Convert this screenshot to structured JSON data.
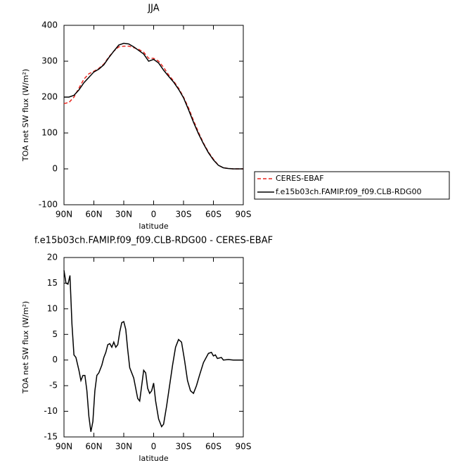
{
  "chart_data": [
    {
      "type": "line",
      "title": "JJA",
      "x_label": "latitude",
      "y_label": "TOA net SW flux (W/m²)",
      "x": [
        90,
        85,
        80,
        75,
        70,
        65,
        60,
        55,
        50,
        45,
        40,
        35,
        30,
        25,
        20,
        15,
        10,
        5,
        0,
        -5,
        -10,
        -15,
        -20,
        -25,
        -30,
        -35,
        -40,
        -45,
        -50,
        -55,
        -60,
        -65,
        -70,
        -75,
        -80,
        -85,
        -90
      ],
      "series": [
        {
          "name": "CERES-EBAF",
          "color": "#e8261f",
          "line_style": "dashed",
          "values": [
            182,
            185,
            200,
            225,
            250,
            265,
            272,
            280,
            292,
            312,
            328,
            340,
            342,
            342,
            338,
            333,
            325,
            308,
            308,
            300,
            283,
            262,
            245,
            225,
            200,
            170,
            135,
            102,
            72,
            47,
            27,
            10,
            3,
            1,
            0,
            0,
            0
          ]
        },
        {
          "name": "f.e15b03ch.FAMIP.f09_f09.CLB-RDG00",
          "color": "#000000",
          "line_style": "solid",
          "values": [
            200,
            200,
            205,
            220,
            240,
            255,
            270,
            278,
            290,
            310,
            328,
            345,
            350,
            348,
            340,
            330,
            320,
            300,
            305,
            295,
            275,
            258,
            242,
            222,
            198,
            165,
            130,
            98,
            70,
            45,
            25,
            10,
            3,
            1,
            0,
            0,
            0
          ]
        }
      ],
      "xlim": [
        90,
        -90
      ],
      "xticks": [
        {
          "value": 90,
          "label": "90N"
        },
        {
          "value": 60,
          "label": "60N"
        },
        {
          "value": 30,
          "label": "30N"
        },
        0,
        {
          "value": -30,
          "label": "30S"
        },
        {
          "value": -60,
          "label": "60S"
        },
        {
          "value": -90,
          "label": "90S"
        }
      ],
      "ylim": [
        -100,
        400
      ],
      "yticks": [
        -100,
        0,
        100,
        200,
        300,
        400
      ],
      "yticks_labels_override": null,
      "legend": true
    },
    {
      "type": "line",
      "title": "f.e15b03ch.FAMIP.f09_f09.CLB-RDG00 - CERES-EBAF",
      "x_label": "latitude",
      "y_label": "TOA net SW flux (W/m²)",
      "x": [
        90,
        88,
        86,
        84,
        82,
        80,
        78,
        75,
        73,
        71,
        69,
        67,
        65,
        63,
        61,
        59,
        57,
        55,
        52,
        50,
        48,
        46,
        44,
        42,
        40,
        38,
        36,
        34,
        32,
        30,
        28,
        26,
        24,
        22,
        20,
        18,
        16,
        14,
        12,
        10,
        8,
        6,
        4,
        2,
        0,
        -2,
        -5,
        -8,
        -10,
        -13,
        -16,
        -19,
        -22,
        -25,
        -28,
        -31,
        -34,
        -37,
        -40,
        -43,
        -46,
        -50,
        -55,
        -58,
        -60,
        -62,
        -64,
        -68,
        -70,
        -75,
        -80,
        -90
      ],
      "series": [
        {
          "color": "#000000",
          "line_style": "solid",
          "values": [
            17.5,
            15,
            14.8,
            16.5,
            7,
            1,
            0.5,
            -2,
            -4,
            -3,
            -3,
            -6,
            -11,
            -14,
            -12,
            -6,
            -3,
            -2.5,
            -1,
            0.5,
            1.5,
            3,
            3.2,
            2.5,
            3.5,
            2.5,
            3,
            5.5,
            7.3,
            7.5,
            6,
            2,
            -1.5,
            -2.5,
            -3.5,
            -5.5,
            -7.5,
            -8,
            -5,
            -2,
            -2.5,
            -5.5,
            -6.5,
            -6,
            -4.5,
            -8,
            -11.5,
            -13,
            -12.5,
            -9,
            -5,
            -1,
            2.5,
            4,
            3.5,
            0,
            -4,
            -6,
            -6.5,
            -5,
            -3,
            -0.5,
            1.3,
            1.5,
            0.8,
            1,
            0.3,
            0.5,
            0,
            0.1,
            0,
            0
          ]
        }
      ],
      "xlim": [
        90,
        -90
      ],
      "xticks": [
        {
          "value": 90,
          "label": "90N"
        },
        {
          "value": 60,
          "label": "60N"
        },
        {
          "value": 30,
          "label": "30N"
        },
        0,
        {
          "value": -30,
          "label": "30S"
        },
        {
          "value": -60,
          "label": "60S"
        },
        {
          "value": -90,
          "label": "90S"
        }
      ],
      "ylim": [
        -15,
        20
      ],
      "yticks": [
        -15,
        -10,
        -5,
        0,
        5,
        10,
        15,
        20
      ],
      "legend": false
    }
  ]
}
